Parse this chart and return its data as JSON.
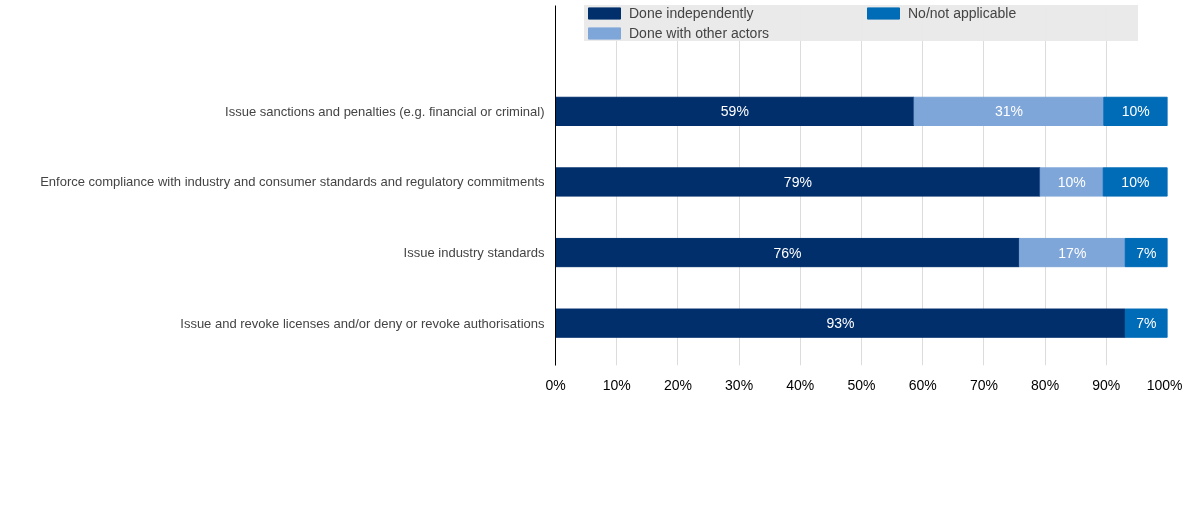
{
  "chart_data": {
    "type": "bar",
    "orientation": "horizontal",
    "stacked": true,
    "categories": [
      "Issue sanctions and penalties (e.g. financial or criminal)",
      "Enforce compliance with industry and consumer standards and regulatory commitments",
      "Issue industry standards",
      "Issue and revoke licenses and/or deny or revoke authorisations"
    ],
    "series": [
      {
        "name": "Done independently",
        "color": "#002f6c",
        "values": [
          58.6,
          79.2,
          75.8,
          93.1
        ],
        "value_labels": [
          "59%",
          "79%",
          "76%",
          "93%"
        ]
      },
      {
        "name": "Done with other actors",
        "color": "#7fa6d9",
        "values": [
          31.0,
          10.3,
          17.3,
          null
        ],
        "value_labels": [
          "31%",
          "10%",
          "17%",
          null
        ]
      },
      {
        "name": "No/not applicable",
        "color": "#006bb6",
        "values": [
          10.4,
          10.5,
          6.9,
          6.9
        ],
        "value_labels": [
          "10%",
          "10%",
          "7%",
          "7%"
        ]
      }
    ],
    "xlim": [
      0,
      100
    ],
    "xticks": [
      {
        "value": 0,
        "label": "0%"
      },
      {
        "value": 10,
        "label": "10%"
      },
      {
        "value": 20,
        "label": "20%"
      },
      {
        "value": 30,
        "label": "30%"
      },
      {
        "value": 40,
        "label": "40%"
      },
      {
        "value": 50,
        "label": "50%"
      },
      {
        "value": 60,
        "label": "60%"
      },
      {
        "value": 70,
        "label": "70%"
      },
      {
        "value": 80,
        "label": "80%"
      },
      {
        "value": 90,
        "label": "90%"
      },
      {
        "value": 100,
        "label": "100%"
      }
    ],
    "grid": "x",
    "legend": "top"
  }
}
